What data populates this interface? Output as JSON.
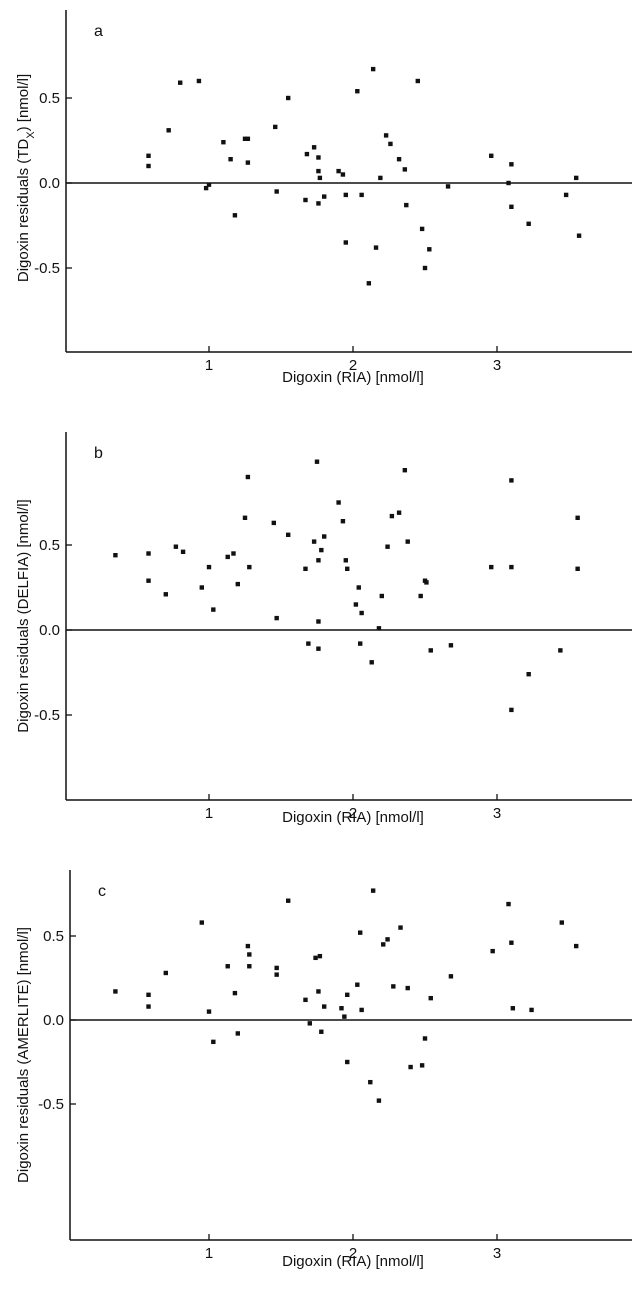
{
  "chart_data": [
    {
      "type": "scatter",
      "panel": "a",
      "xlabel": "Digoxin (RIA) [nmol/l]",
      "ylabel_main": "Digoxin residuals (TD",
      "ylabel_sub": "X",
      "ylabel_tail": ") [nmol/l]",
      "xticks": [
        "1",
        "2",
        "3"
      ],
      "yticks": [
        "0.5",
        "0.0",
        "-0.5"
      ],
      "xlim": [
        0.0,
        3.9
      ],
      "ylim": [
        -0.9,
        0.8
      ],
      "zero_line": true,
      "grid": false,
      "points": [
        [
          0.58,
          0.1
        ],
        [
          0.58,
          0.16
        ],
        [
          0.72,
          0.31
        ],
        [
          0.8,
          0.59
        ],
        [
          0.93,
          0.6
        ],
        [
          0.98,
          -0.03
        ],
        [
          1.0,
          -0.01
        ],
        [
          1.1,
          0.24
        ],
        [
          1.15,
          0.14
        ],
        [
          1.18,
          -0.19
        ],
        [
          1.25,
          0.26
        ],
        [
          1.27,
          0.26
        ],
        [
          1.27,
          0.12
        ],
        [
          1.46,
          0.33
        ],
        [
          1.47,
          -0.05
        ],
        [
          1.55,
          0.5
        ],
        [
          1.67,
          -0.1
        ],
        [
          1.68,
          0.17
        ],
        [
          1.73,
          0.21
        ],
        [
          1.76,
          0.15
        ],
        [
          1.76,
          -0.12
        ],
        [
          1.76,
          0.07
        ],
        [
          1.77,
          0.03
        ],
        [
          1.8,
          -0.08
        ],
        [
          1.9,
          0.07
        ],
        [
          1.93,
          0.05
        ],
        [
          1.95,
          -0.07
        ],
        [
          1.95,
          -0.35
        ],
        [
          2.03,
          0.54
        ],
        [
          2.06,
          -0.07
        ],
        [
          2.11,
          -0.59
        ],
        [
          2.14,
          0.67
        ],
        [
          2.16,
          -0.38
        ],
        [
          2.19,
          0.03
        ],
        [
          2.23,
          0.28
        ],
        [
          2.26,
          0.23
        ],
        [
          2.32,
          0.14
        ],
        [
          2.36,
          0.08
        ],
        [
          2.37,
          -0.13
        ],
        [
          2.45,
          0.6
        ],
        [
          2.48,
          -0.27
        ],
        [
          2.5,
          -0.5
        ],
        [
          2.53,
          -0.39
        ],
        [
          2.66,
          -0.02
        ],
        [
          2.96,
          0.16
        ],
        [
          3.08,
          0.0
        ],
        [
          3.1,
          0.11
        ],
        [
          3.1,
          -0.14
        ],
        [
          3.22,
          -0.24
        ],
        [
          3.48,
          -0.07
        ],
        [
          3.55,
          0.03
        ],
        [
          3.57,
          -0.31
        ]
      ]
    },
    {
      "type": "scatter",
      "panel": "b",
      "xlabel": "Digoxin (RIA) [nmol/l]",
      "ylabel_main": "Digoxin residuals (DELFIA) [nmol/l]",
      "ylabel_sub": "",
      "ylabel_tail": "",
      "xticks": [
        "1",
        "2",
        "3"
      ],
      "yticks": [
        "0.5",
        "0.0",
        "-0.5"
      ],
      "xlim": [
        0.0,
        3.9
      ],
      "ylim": [
        -0.99,
        0.99
      ],
      "zero_line": true,
      "grid": false,
      "points": [
        [
          0.35,
          0.44
        ],
        [
          0.58,
          0.29
        ],
        [
          0.58,
          0.45
        ],
        [
          0.7,
          0.21
        ],
        [
          0.77,
          0.49
        ],
        [
          0.82,
          0.46
        ],
        [
          0.95,
          0.25
        ],
        [
          1.0,
          0.37
        ],
        [
          1.03,
          0.12
        ],
        [
          1.13,
          0.43
        ],
        [
          1.17,
          0.45
        ],
        [
          1.2,
          0.27
        ],
        [
          1.25,
          0.66
        ],
        [
          1.27,
          0.9
        ],
        [
          1.28,
          0.37
        ],
        [
          1.45,
          0.63
        ],
        [
          1.47,
          0.07
        ],
        [
          1.55,
          0.56
        ],
        [
          1.67,
          0.36
        ],
        [
          1.69,
          -0.08
        ],
        [
          1.73,
          0.52
        ],
        [
          1.75,
          0.99
        ],
        [
          1.76,
          0.05
        ],
        [
          1.76,
          -0.11
        ],
        [
          1.76,
          0.41
        ],
        [
          1.78,
          0.47
        ],
        [
          1.8,
          0.55
        ],
        [
          1.9,
          0.75
        ],
        [
          1.93,
          0.64
        ],
        [
          1.95,
          0.41
        ],
        [
          1.96,
          0.36
        ],
        [
          2.02,
          0.15
        ],
        [
          2.04,
          0.25
        ],
        [
          2.05,
          -0.08
        ],
        [
          2.06,
          0.1
        ],
        [
          2.13,
          -0.19
        ],
        [
          2.18,
          0.01
        ],
        [
          2.2,
          0.2
        ],
        [
          2.24,
          0.49
        ],
        [
          2.27,
          0.67
        ],
        [
          2.32,
          0.69
        ],
        [
          2.36,
          0.94
        ],
        [
          2.38,
          0.52
        ],
        [
          2.47,
          0.2
        ],
        [
          2.5,
          0.29
        ],
        [
          2.51,
          0.28
        ],
        [
          2.54,
          -0.12
        ],
        [
          2.68,
          -0.09
        ],
        [
          2.96,
          0.37
        ],
        [
          3.1,
          0.88
        ],
        [
          3.1,
          0.37
        ],
        [
          3.1,
          -0.47
        ],
        [
          3.22,
          -0.26
        ],
        [
          3.44,
          -0.12
        ],
        [
          3.56,
          0.66
        ],
        [
          3.56,
          0.36
        ]
      ]
    },
    {
      "type": "scatter",
      "panel": "c",
      "xlabel": "Digoxin (RIA) [nmol/l]",
      "ylabel_main": "Digoxin residuals (AMERLITE) [nmol/l]",
      "ylabel_sub": "",
      "ylabel_tail": "",
      "xticks": [
        "1",
        "2",
        "3"
      ],
      "yticks": [
        "0.5",
        "0.0",
        "-0.5"
      ],
      "xlim": [
        0.0,
        3.9
      ],
      "ylim": [
        -1.06,
        0.97
      ],
      "zero_line": true,
      "grid": false,
      "points": [
        [
          0.35,
          0.17
        ],
        [
          0.58,
          0.08
        ],
        [
          0.58,
          0.15
        ],
        [
          0.7,
          0.28
        ],
        [
          0.95,
          0.58
        ],
        [
          1.0,
          0.05
        ],
        [
          1.03,
          -0.13
        ],
        [
          1.13,
          0.32
        ],
        [
          1.18,
          0.16
        ],
        [
          1.2,
          -0.08
        ],
        [
          1.27,
          0.44
        ],
        [
          1.28,
          0.39
        ],
        [
          1.28,
          0.32
        ],
        [
          1.47,
          0.31
        ],
        [
          1.47,
          0.27
        ],
        [
          1.55,
          0.71
        ],
        [
          1.67,
          0.12
        ],
        [
          1.7,
          -0.02
        ],
        [
          1.74,
          0.37
        ],
        [
          1.76,
          0.17
        ],
        [
          1.77,
          0.38
        ],
        [
          1.78,
          -0.07
        ],
        [
          1.8,
          0.08
        ],
        [
          1.92,
          0.07
        ],
        [
          1.94,
          0.02
        ],
        [
          1.96,
          0.15
        ],
        [
          1.96,
          -0.25
        ],
        [
          2.03,
          0.21
        ],
        [
          2.05,
          0.52
        ],
        [
          2.06,
          0.06
        ],
        [
          2.12,
          -0.37
        ],
        [
          2.14,
          0.77
        ],
        [
          2.18,
          -0.48
        ],
        [
          2.21,
          0.45
        ],
        [
          2.24,
          0.48
        ],
        [
          2.28,
          0.2
        ],
        [
          2.33,
          0.55
        ],
        [
          2.38,
          0.19
        ],
        [
          2.4,
          -0.28
        ],
        [
          2.48,
          -0.27
        ],
        [
          2.5,
          -0.11
        ],
        [
          2.54,
          0.13
        ],
        [
          2.68,
          0.26
        ],
        [
          2.97,
          0.41
        ],
        [
          3.08,
          0.69
        ],
        [
          3.1,
          0.46
        ],
        [
          3.11,
          0.07
        ],
        [
          3.24,
          0.06
        ],
        [
          3.45,
          0.58
        ],
        [
          3.55,
          0.44
        ]
      ]
    }
  ]
}
